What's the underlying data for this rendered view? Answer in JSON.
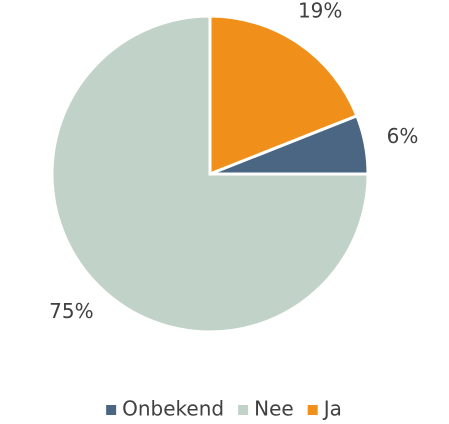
{
  "chart_data": {
    "type": "pie",
    "categories": [
      "Ja",
      "Onbekend",
      "Nee"
    ],
    "values": [
      19,
      6,
      75
    ],
    "value_labels": [
      "19%",
      "6%",
      "75%"
    ],
    "colors": [
      "#f0901a",
      "#4a6683",
      "#c1d3c8"
    ],
    "legend_order": [
      1,
      2,
      0
    ],
    "legend": "bottom"
  }
}
